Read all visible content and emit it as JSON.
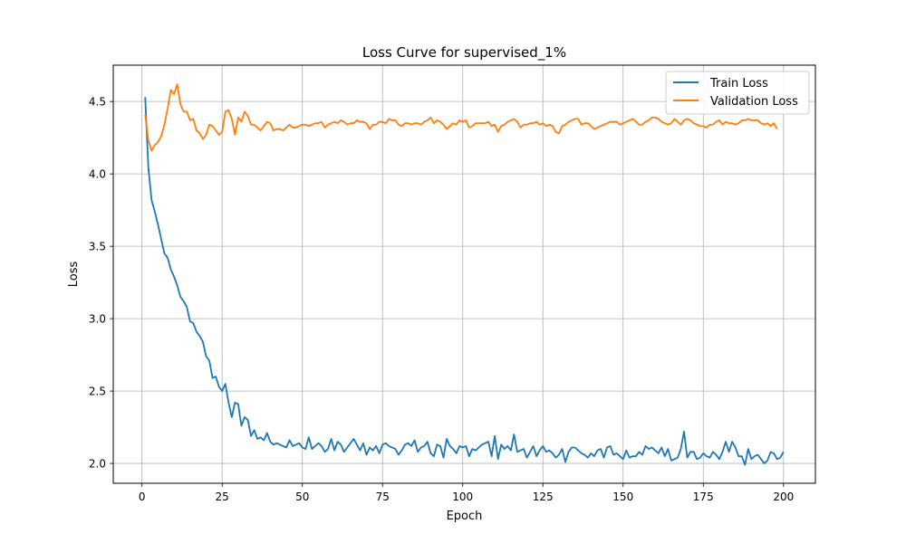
{
  "chart_data": {
    "type": "line",
    "title": "Loss Curve for supervised_1%",
    "xlabel": "Epoch",
    "ylabel": "Loss",
    "xlim": [
      -8.95,
      209.95
    ],
    "ylim": [
      1.863,
      4.751
    ],
    "xticks": [
      0,
      25,
      50,
      75,
      100,
      125,
      150,
      175,
      200
    ],
    "yticks": [
      2.0,
      2.5,
      3.0,
      3.5,
      4.0,
      4.5
    ],
    "xtick_labels": [
      "0",
      "25",
      "50",
      "75",
      "100",
      "125",
      "150",
      "175",
      "200"
    ],
    "ytick_labels": [
      "2.0",
      "2.5",
      "3.0",
      "3.5",
      "4.0",
      "4.5"
    ],
    "grid": true,
    "legend_position": "top-right",
    "x": "1..200",
    "series": [
      {
        "name": "Train Loss",
        "color": "#1f77b4",
        "values": [
          4.53,
          4.04,
          3.82,
          3.74,
          3.65,
          3.55,
          3.45,
          3.42,
          3.34,
          3.29,
          3.23,
          3.15,
          3.12,
          3.08,
          2.98,
          2.97,
          2.91,
          2.88,
          2.84,
          2.74,
          2.71,
          2.59,
          2.6,
          2.53,
          2.5,
          2.55,
          2.42,
          2.32,
          2.42,
          2.41,
          2.26,
          2.32,
          2.3,
          2.19,
          2.23,
          2.17,
          2.18,
          2.16,
          2.21,
          2.15,
          2.13,
          2.14,
          2.13,
          2.12,
          2.11,
          2.16,
          2.12,
          2.13,
          2.14,
          2.11,
          2.1,
          2.18,
          2.1,
          2.12,
          2.14,
          2.12,
          2.08,
          2.1,
          2.17,
          2.09,
          2.15,
          2.13,
          2.08,
          2.11,
          2.14,
          2.17,
          2.13,
          2.09,
          2.14,
          2.06,
          2.11,
          2.09,
          2.12,
          2.07,
          2.13,
          2.14,
          2.12,
          2.11,
          2.1,
          2.06,
          2.09,
          2.13,
          2.14,
          2.12,
          2.16,
          2.08,
          2.11,
          2.12,
          2.15,
          2.07,
          2.05,
          2.13,
          2.12,
          2.04,
          2.17,
          2.12,
          2.1,
          2.07,
          2.12,
          2.11,
          2.12,
          2.05,
          2.1,
          2.09,
          2.11,
          2.13,
          2.14,
          2.15,
          2.05,
          2.19,
          2.03,
          2.13,
          2.1,
          2.12,
          2.09,
          2.2,
          2.08,
          2.09,
          2.1,
          2.04,
          2.08,
          2.12,
          2.05,
          2.09,
          2.12,
          2.08,
          2.09,
          2.07,
          2.04,
          2.06,
          2.1,
          2.01,
          2.08,
          2.11,
          2.11,
          2.09,
          2.07,
          2.06,
          2.04,
          2.07,
          2.05,
          2.09,
          2.1,
          2.04,
          2.11,
          2.12,
          2.06,
          2.07,
          2.05,
          2.03,
          2.09,
          2.04,
          2.05,
          2.05,
          2.08,
          2.06,
          2.12,
          2.1,
          2.11,
          2.09,
          2.07,
          2.11,
          2.05,
          2.1,
          2.02,
          2.03,
          2.04,
          2.1,
          2.22,
          2.04,
          2.08,
          2.08,
          2.03,
          2.04,
          2.07,
          2.05,
          2.04,
          2.08,
          2.06,
          2.03,
          2.08,
          2.15,
          2.08,
          2.15,
          2.11,
          2.05,
          2.05,
          1.99,
          2.1,
          2.03,
          2.05,
          2.06,
          2.03,
          2.0,
          2.02,
          2.08,
          2.07,
          2.03,
          2.04,
          2.08
        ]
      },
      {
        "name": "Validation Loss",
        "color": "#ff7f0e",
        "values": [
          4.41,
          4.23,
          4.16,
          4.2,
          4.22,
          4.26,
          4.34,
          4.45,
          4.58,
          4.55,
          4.62,
          4.48,
          4.43,
          4.43,
          4.37,
          4.38,
          4.3,
          4.28,
          4.24,
          4.27,
          4.34,
          4.33,
          4.3,
          4.27,
          4.29,
          4.43,
          4.44,
          4.38,
          4.27,
          4.39,
          4.36,
          4.43,
          4.4,
          4.34,
          4.34,
          4.32,
          4.3,
          4.33,
          4.36,
          4.35,
          4.3,
          4.31,
          4.31,
          4.3,
          4.32,
          4.34,
          4.32,
          4.32,
          4.33,
          4.34,
          4.34,
          4.33,
          4.34,
          4.35,
          4.35,
          4.36,
          4.32,
          4.34,
          4.35,
          4.36,
          4.35,
          4.37,
          4.36,
          4.34,
          4.35,
          4.35,
          4.37,
          4.36,
          4.36,
          4.35,
          4.31,
          4.34,
          4.34,
          4.36,
          4.36,
          4.35,
          4.38,
          4.37,
          4.37,
          4.34,
          4.33,
          4.35,
          4.35,
          4.34,
          4.35,
          4.35,
          4.34,
          4.36,
          4.37,
          4.39,
          4.35,
          4.37,
          4.36,
          4.34,
          4.31,
          4.33,
          4.35,
          4.34,
          4.37,
          4.36,
          4.37,
          4.32,
          4.33,
          4.35,
          4.35,
          4.35,
          4.35,
          4.36,
          4.33,
          4.34,
          4.29,
          4.33,
          4.34,
          4.36,
          4.37,
          4.38,
          4.36,
          4.32,
          4.34,
          4.34,
          4.35,
          4.35,
          4.36,
          4.34,
          4.35,
          4.33,
          4.34,
          4.33,
          4.29,
          4.28,
          4.33,
          4.34,
          4.36,
          4.37,
          4.38,
          4.38,
          4.34,
          4.35,
          4.35,
          4.33,
          4.31,
          4.32,
          4.33,
          4.34,
          4.35,
          4.36,
          4.36,
          4.36,
          4.34,
          4.35,
          4.36,
          4.37,
          4.38,
          4.36,
          4.34,
          4.34,
          4.36,
          4.37,
          4.39,
          4.39,
          4.38,
          4.36,
          4.35,
          4.34,
          4.35,
          4.38,
          4.36,
          4.34,
          4.37,
          4.38,
          4.37,
          4.35,
          4.34,
          4.33,
          4.33,
          4.32,
          4.34,
          4.34,
          4.36,
          4.37,
          4.34,
          4.36,
          4.35,
          4.35,
          4.34,
          4.35,
          4.37,
          4.37,
          4.38,
          4.37,
          4.37,
          4.37,
          4.35,
          4.34,
          4.35,
          4.33,
          4.35,
          4.31
        ]
      }
    ]
  }
}
